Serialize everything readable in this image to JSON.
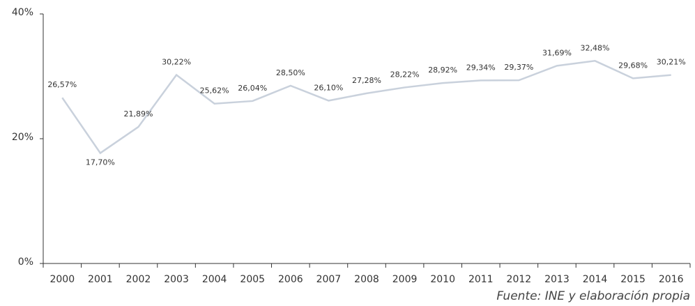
{
  "chart_data": {
    "type": "line",
    "categories": [
      "2000",
      "2001",
      "2002",
      "2003",
      "2004",
      "2005",
      "2006",
      "2007",
      "2008",
      "2009",
      "2010",
      "2011",
      "2012",
      "2013",
      "2014",
      "2015",
      "2016"
    ],
    "series": [
      {
        "color": "#c9d1dc",
        "values": [
          26.57,
          17.7,
          21.89,
          30.22,
          25.62,
          26.04,
          28.5,
          26.1,
          27.28,
          28.22,
          28.92,
          29.34,
          29.37,
          31.69,
          32.48,
          29.68,
          30.21
        ],
        "value_labels": [
          "26,57%",
          "17,70%",
          "21,89%",
          "30,22%",
          "25,62%",
          "26,04%",
          "28,50%",
          "26,10%",
          "27,28%",
          "28,22%",
          "28,92%",
          "29,34%",
          "29,37%",
          "31,69%",
          "32,48%",
          "29,68%",
          "30,21%"
        ]
      }
    ],
    "ylim": [
      0,
      40
    ],
    "yticks": [
      {
        "value": 0,
        "label": "0%"
      },
      {
        "value": 20,
        "label": "20%"
      },
      {
        "value": 40,
        "label": "40%"
      }
    ],
    "source": "Fuente: INE y elaboración propia"
  }
}
